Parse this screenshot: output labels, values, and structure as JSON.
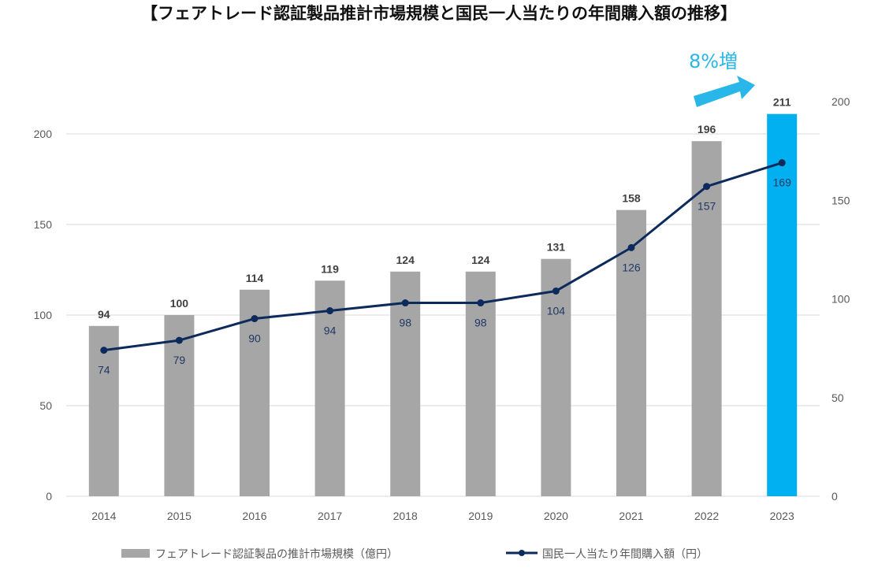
{
  "chart_data": {
    "type": "bar",
    "title": "【フェアトレード認証製品推計市場規模と国民一人当たりの年間購入額の推移】",
    "categories": [
      "2014",
      "2015",
      "2016",
      "2017",
      "2018",
      "2019",
      "2020",
      "2021",
      "2022",
      "2023"
    ],
    "series": [
      {
        "name": "フェアトレード認証製品の推計市場規模（億円）",
        "type": "bar",
        "axis": "left",
        "values": [
          94,
          100,
          114,
          119,
          124,
          124,
          131,
          158,
          196,
          211
        ]
      },
      {
        "name": "国民一人当たり年間購入額（円）",
        "type": "line",
        "axis": "right",
        "values": [
          74,
          79,
          90,
          94,
          98,
          98,
          104,
          126,
          157,
          169
        ]
      }
    ],
    "y_left": {
      "ylim": [
        0,
        200
      ],
      "ticks": [
        0,
        50,
        100,
        150,
        200
      ]
    },
    "y_right": {
      "ylim": [
        0,
        200
      ],
      "ticks": [
        0,
        50,
        100,
        150,
        200
      ]
    },
    "grid": true,
    "legend": "bottom",
    "highlight_category": "2023",
    "annotation": {
      "text": "8%増",
      "target": "2023"
    },
    "colors": {
      "bar": "#a6a6a6",
      "highlight": "#00b0f0",
      "line": "#0d2a5c",
      "grid": "#d9d9d9",
      "annotation": "#29b6e8"
    }
  }
}
